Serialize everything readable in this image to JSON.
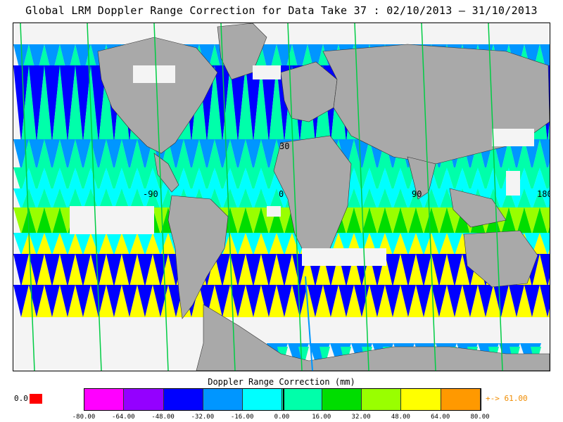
{
  "title": "Global LRM Doppler Range Correction for Data Take 37 : 02/10/2013 – 31/10/2013",
  "map": {
    "projection": "equirectangular",
    "background_land_color": "#a9a9a9",
    "no_data_color": "#f4f4f4",
    "gridline_labels": {
      "lat_30": "30",
      "lon_neg90": "-90",
      "lon_0": "0",
      "lon_90": "90",
      "lon_180": "180"
    }
  },
  "legend": {
    "title": "Doppler Range Correction (mm)",
    "missing_label": "0.0",
    "missing_color": "#ff0000",
    "overflow_label": "+-> 61.00",
    "overflow_color": "#f08c00",
    "ticks": [
      "-80.00",
      "-64.00",
      "-48.00",
      "-32.00",
      "-16.00",
      "0.00",
      "16.00",
      "32.00",
      "48.00",
      "64.00",
      "80.00"
    ],
    "colors": [
      "#ff00ff",
      "#9400ff",
      "#0000ff",
      "#0096ff",
      "#00ffff",
      "#00ffaa",
      "#00dd00",
      "#99ff00",
      "#ffff00",
      "#ff9900"
    ]
  }
}
